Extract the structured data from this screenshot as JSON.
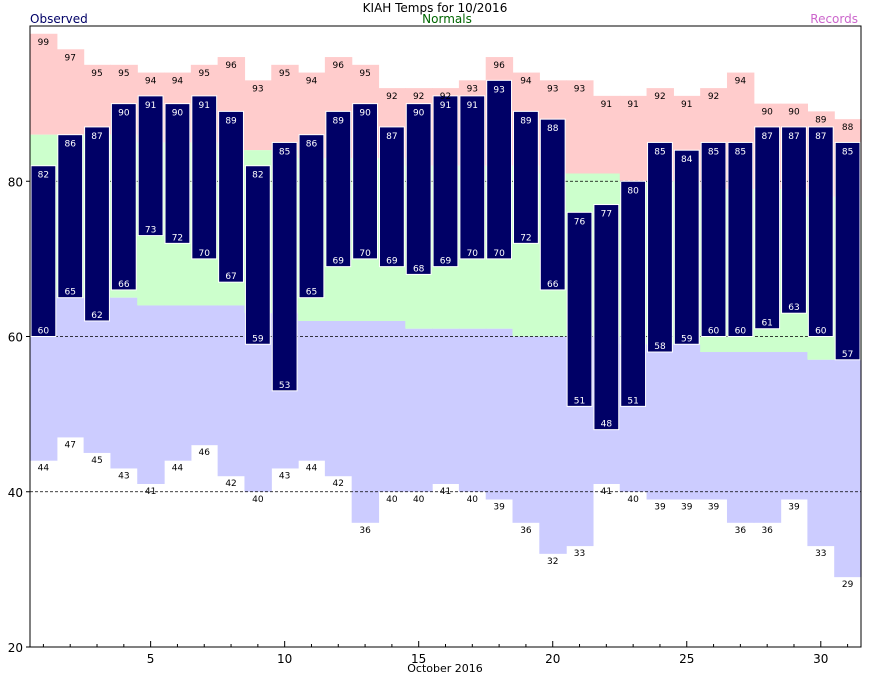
{
  "chart_data": {
    "type": "bar",
    "title": "KIAH Temps for 10/2016",
    "xlabel": "October 2016",
    "ylabel": "",
    "ylim": [
      20,
      100
    ],
    "yticks": [
      20,
      40,
      60,
      80
    ],
    "xticks": [
      5,
      10,
      15,
      20,
      25,
      30
    ],
    "grid_lines": [
      40,
      60,
      80
    ],
    "legend": [
      {
        "label": "Observed",
        "color": "#000066",
        "position": "top-left"
      },
      {
        "label": "Normals",
        "color": "#006600",
        "position": "top-center"
      },
      {
        "label": "Records",
        "color": "#cc66cc",
        "position": "top-right"
      }
    ],
    "colors": {
      "observed_bar": "#000066",
      "observed_outline": "#ffffff",
      "normal_band": "#ccffcc",
      "record_high_band": "#ffcccc",
      "record_low_band": "#ccccff",
      "grid": "#000000",
      "label": "#000000",
      "bar_label": "#ffffff"
    },
    "days": [
      1,
      2,
      3,
      4,
      5,
      6,
      7,
      8,
      9,
      10,
      11,
      12,
      13,
      14,
      15,
      16,
      17,
      18,
      19,
      20,
      21,
      22,
      23,
      24,
      25,
      26,
      27,
      28,
      29,
      30,
      31
    ],
    "series": [
      {
        "name": "Observed High",
        "values": [
          82,
          86,
          87,
          90,
          91,
          90,
          91,
          89,
          82,
          85,
          86,
          89,
          90,
          87,
          90,
          91,
          91,
          93,
          89,
          88,
          76,
          77,
          80,
          85,
          84,
          85,
          85,
          87,
          87,
          87,
          85
        ]
      },
      {
        "name": "Observed Low",
        "values": [
          60,
          65,
          62,
          66,
          73,
          72,
          70,
          67,
          59,
          53,
          65,
          69,
          70,
          69,
          68,
          69,
          70,
          70,
          72,
          66,
          51,
          48,
          51,
          58,
          59,
          60,
          60,
          61,
          63,
          60,
          57
        ]
      },
      {
        "name": "Normal High",
        "values": [
          86,
          86,
          86,
          86,
          85,
          85,
          85,
          84,
          84,
          84,
          83,
          83,
          83,
          83,
          82,
          82,
          82,
          82,
          82,
          81,
          81,
          81,
          80,
          80,
          80,
          79,
          79,
          79,
          79,
          78,
          78
        ]
      },
      {
        "name": "Normal Low",
        "values": [
          66,
          65,
          65,
          65,
          64,
          64,
          64,
          64,
          63,
          63,
          62,
          62,
          62,
          62,
          61,
          61,
          61,
          61,
          60,
          60,
          60,
          60,
          59,
          59,
          59,
          58,
          58,
          58,
          58,
          57,
          57
        ]
      },
      {
        "name": "Record High",
        "values": [
          99,
          97,
          95,
          95,
          94,
          94,
          95,
          96,
          93,
          95,
          94,
          96,
          95,
          92,
          92,
          92,
          93,
          96,
          94,
          93,
          93,
          91,
          91,
          92,
          91,
          92,
          94,
          90,
          90,
          89,
          88
        ]
      },
      {
        "name": "Record Low",
        "values": [
          44,
          47,
          45,
          43,
          41,
          44,
          46,
          42,
          40,
          43,
          44,
          42,
          36,
          40,
          40,
          41,
          40,
          39,
          36,
          32,
          33,
          41,
          40,
          39,
          39,
          39,
          36,
          36,
          39,
          33,
          29
        ]
      }
    ],
    "record_high_labels": [
      "99",
      "97",
      "95",
      "95",
      "94",
      "94",
      "95",
      "96",
      "93",
      "95",
      "94",
      "96",
      "95",
      "92",
      "92",
      "92",
      "93",
      "96",
      "94",
      "93",
      "93",
      "91",
      "91",
      "92",
      "91",
      "92",
      "94",
      "90",
      "90",
      "89",
      "88"
    ],
    "record_low_labels": [
      "44",
      "47",
      "45",
      "43",
      "41",
      "44",
      "46",
      "42",
      "40",
      "43",
      "44",
      "42",
      "36",
      "40",
      "40",
      "41",
      "40",
      "39",
      "36",
      "32",
      "33",
      "41",
      "40",
      "39",
      "39",
      "39",
      "36",
      "36",
      "39",
      "33",
      "29"
    ],
    "high_labels": [
      "82",
      "86",
      "87",
      "90",
      "91",
      "90",
      "91",
      "89",
      "82",
      "85",
      "86",
      "89",
      "90",
      "87",
      "90",
      "91",
      "91",
      "93",
      "89",
      "88",
      "76",
      "77",
      "80",
      "85",
      "84",
      "85",
      "85",
      "87",
      "87",
      "87",
      "85"
    ],
    "low_labels": [
      "60",
      "65",
      "62",
      "66",
      "73",
      "72",
      "70",
      "67",
      "59",
      "53",
      "65",
      "69",
      "70",
      "69",
      "68",
      "69",
      "70",
      "70",
      "72",
      "66",
      "51",
      "48",
      "51",
      "58",
      "59",
      "60",
      "60",
      "61",
      "63",
      "60",
      "57"
    ],
    "ytick_labels": [
      "20",
      "40",
      "60",
      "80"
    ],
    "xtick_labels": [
      "5",
      "10",
      "15",
      "20",
      "25",
      "30"
    ]
  }
}
